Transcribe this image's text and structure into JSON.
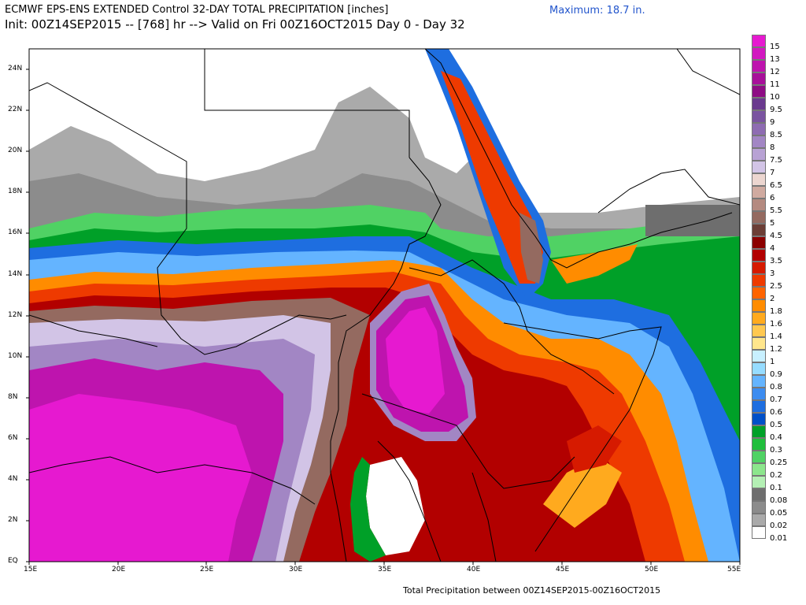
{
  "header": {
    "line1": "ECMWF EPS-ENS EXTENDED Control 32-DAY TOTAL PRECIPITATION [inches]",
    "line2": "Init: 00Z14SEP2015 -- [768] hr --> Valid on Fri 00Z16OCT2015  Day 0 - Day 32",
    "maximum": "Maximum:  18.7 in."
  },
  "footer": "Total Precipitation between 00Z14SEP2015-00Z16OCT2015",
  "axes": {
    "lat_labels": [
      "24N",
      "22N",
      "20N",
      "18N",
      "16N",
      "14N",
      "12N",
      "10N",
      "8N",
      "6N",
      "4N",
      "2N",
      "EQ"
    ],
    "lon_labels": [
      "15E",
      "20E",
      "25E",
      "30E",
      "35E",
      "40E",
      "45E",
      "50E",
      "55E"
    ]
  },
  "legend": {
    "levels": [
      {
        "label": "15",
        "color": "#e619d0"
      },
      {
        "label": "13",
        "color": "#d218c0"
      },
      {
        "label": "12",
        "color": "#be14ae"
      },
      {
        "label": "11",
        "color": "#a8109a"
      },
      {
        "label": "10",
        "color": "#8e0c84"
      },
      {
        "label": "9.5",
        "color": "#6a3a8e"
      },
      {
        "label": "9",
        "color": "#7a54a0"
      },
      {
        "label": "8.5",
        "color": "#8e6cb2"
      },
      {
        "label": "8",
        "color": "#a286c4"
      },
      {
        "label": "7.5",
        "color": "#b8a2d4"
      },
      {
        "label": "7",
        "color": "#d2c4e6"
      },
      {
        "label": "6.5",
        "color": "#ecd6d0"
      },
      {
        "label": "6",
        "color": "#d0aaa0"
      },
      {
        "label": "5.5",
        "color": "#b48a80"
      },
      {
        "label": "5",
        "color": "#946a60"
      },
      {
        "label": "4.5",
        "color": "#6c3e36"
      },
      {
        "label": "4",
        "color": "#8c0000"
      },
      {
        "label": "3.5",
        "color": "#b20000"
      },
      {
        "label": "3",
        "color": "#d61a00"
      },
      {
        "label": "2.5",
        "color": "#ee3a00"
      },
      {
        "label": "2",
        "color": "#ff6400"
      },
      {
        "label": "1.8",
        "color": "#ff8c00"
      },
      {
        "label": "1.6",
        "color": "#ffaa1e"
      },
      {
        "label": "1.4",
        "color": "#ffc850"
      },
      {
        "label": "1.2",
        "color": "#ffe68c"
      },
      {
        "label": "1",
        "color": "#c8f0ff"
      },
      {
        "label": "0.9",
        "color": "#96dcff"
      },
      {
        "label": "0.8",
        "color": "#64b4ff"
      },
      {
        "label": "0.7",
        "color": "#3c8cf0"
      },
      {
        "label": "0.6",
        "color": "#1e6ee0"
      },
      {
        "label": "0.5",
        "color": "#0050c8"
      },
      {
        "label": "0.4",
        "color": "#00a028"
      },
      {
        "label": "0.3",
        "color": "#20be3c"
      },
      {
        "label": "0.25",
        "color": "#50d264"
      },
      {
        "label": "0.2",
        "color": "#8ce68c"
      },
      {
        "label": "0.1",
        "color": "#b4f0b4"
      },
      {
        "label": "0.08",
        "color": "#6e6e6e"
      },
      {
        "label": "0.05",
        "color": "#8c8c8c"
      },
      {
        "label": "0.02",
        "color": "#aaaaaa"
      },
      {
        "label": "0.01",
        "color": "#ffffff"
      }
    ]
  }
}
